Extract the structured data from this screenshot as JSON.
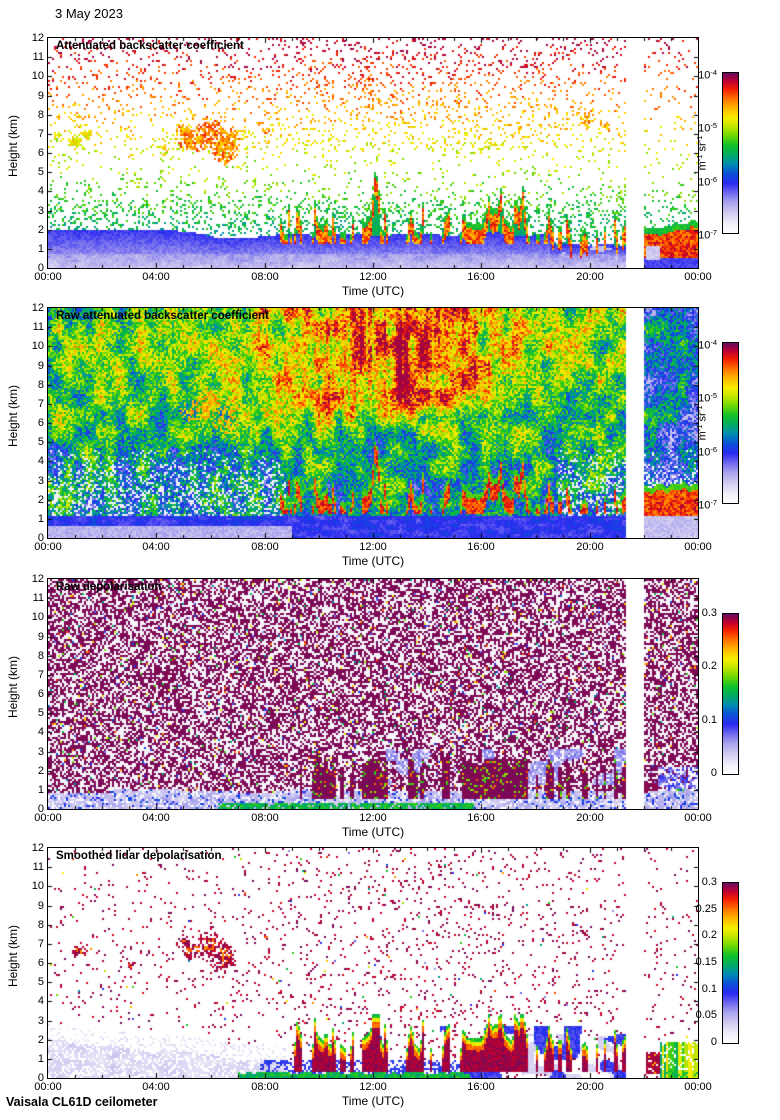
{
  "figure": {
    "date": "3 May 2023",
    "footer": "Vaisala CL61D ceilometer",
    "xlabel": "Time (UTC)",
    "ylabel": "Height (km)",
    "x_ticks": [
      "00:00",
      "04:00",
      "08:00",
      "12:00",
      "16:00",
      "20:00",
      "00:00"
    ],
    "y_ticks": [
      "0",
      "1",
      "2",
      "3",
      "4",
      "5",
      "6",
      "7",
      "8",
      "9",
      "10",
      "11",
      "12"
    ],
    "x_range_hours": [
      0,
      24
    ],
    "y_range_km": [
      0,
      12
    ],
    "data_gap_utc": [
      "21:20",
      "22:00"
    ]
  },
  "render": {
    "plume_seed": 777,
    "cols": 325,
    "rows": 115,
    "cell": 2
  },
  "colormap": [
    [
      0.0,
      "#ffffff"
    ],
    [
      0.06,
      "#efedf8"
    ],
    [
      0.12,
      "#d3cdf1"
    ],
    [
      0.19,
      "#a9a4ec"
    ],
    [
      0.25,
      "#6f68ef"
    ],
    [
      0.31,
      "#2a2af0"
    ],
    [
      0.37,
      "#0b50d8"
    ],
    [
      0.43,
      "#008cb4"
    ],
    [
      0.49,
      "#00ab62"
    ],
    [
      0.55,
      "#14c328"
    ],
    [
      0.61,
      "#71d900"
    ],
    [
      0.67,
      "#c8e700"
    ],
    [
      0.72,
      "#f7ef00"
    ],
    [
      0.78,
      "#ffb900"
    ],
    [
      0.84,
      "#ff7200"
    ],
    [
      0.9,
      "#f32000"
    ],
    [
      0.95,
      "#c00030"
    ],
    [
      1.0,
      "#6d0b5f"
    ]
  ],
  "chart_data": [
    {
      "type": "heatmap",
      "title": "Attenuated backscatter coefficient",
      "summary": "Sparse speckle over white; blue aerosol boundary layer 0-2 km all day; orange cloud patches 6-7.5 km ~05:00-07:00; convective plumes with red cores 1.5-4 km from ~08:40-21:20; data gap 21:20-22:00; red layer 1-2.5 km after 22:00.",
      "colorbar": {
        "scale": "log",
        "min_exp": -7,
        "max_exp": -4,
        "unit_parts": [
          "m",
          "-1",
          " sr",
          "-1"
        ],
        "ticks": [
          {
            "parts": [
              "10",
              "-4"
            ],
            "frac": 1
          },
          {
            "parts": [
              "10",
              "-5"
            ],
            "frac": 0.6667
          },
          {
            "parts": [
              "10",
              "-6"
            ],
            "frac": 0.3333
          },
          {
            "parts": [
              "10",
              "-7"
            ],
            "frac": 0
          }
        ]
      },
      "features": {
        "kind": "backscatter_sparse",
        "seed": 11,
        "gap_hours": [
          21.33,
          22.0
        ],
        "boundary_layer_top_km": 1.95,
        "plume_hours": [
          8.6,
          21.33
        ],
        "plume_top_km": [
          1.2,
          4.0
        ],
        "cloud_blobs": [
          [
            5.35,
            6.6,
            0.55,
            0.6,
            0.8
          ],
          [
            5.0,
            7.1,
            0.3,
            0.45,
            0.77
          ],
          [
            5.95,
            7.0,
            0.5,
            0.9,
            0.82
          ],
          [
            6.55,
            6.35,
            0.55,
            1.0,
            0.8
          ],
          [
            6.9,
            6.9,
            0.25,
            0.5,
            0.78
          ],
          [
            1.0,
            6.6,
            0.3,
            0.35,
            0.7
          ],
          [
            1.45,
            6.95,
            0.22,
            0.3,
            0.68
          ],
          [
            0.35,
            6.9,
            0.2,
            0.3,
            0.66
          ],
          [
            4.3,
            6.1,
            0.22,
            0.3,
            0.7
          ],
          [
            3.1,
            5.85,
            0.12,
            0.2,
            0.72
          ],
          [
            8.05,
            7.2,
            0.13,
            0.28,
            0.78
          ],
          [
            12.3,
            8.6,
            0.1,
            0.16,
            0.72
          ],
          [
            19.85,
            7.75,
            0.2,
            0.3,
            0.78
          ],
          [
            20.65,
            7.3,
            0.13,
            0.22,
            0.76
          ]
        ],
        "post_gap_layer_km": [
          0.8,
          2.2
        ]
      }
    },
    {
      "type": "heatmap",
      "title": "Raw attenuated backscatter coefficient",
      "summary": "Dense rainbow noise everywhere; blue near surface, green mid-levels, orange/red 6-12 km between ~08:00-18:00 with vertical striping; same plume red cores 2-3 km after 09:00; data gap 21:20-22:00.",
      "colorbar": {
        "scale": "log",
        "min_exp": -7,
        "max_exp": -4,
        "unit_parts": [
          "m",
          "-1",
          " sr",
          "-1"
        ],
        "ticks": [
          {
            "parts": [
              "10",
              "-4"
            ],
            "frac": 1
          },
          {
            "parts": [
              "10",
              "-5"
            ],
            "frac": 0.6667
          },
          {
            "parts": [
              "10",
              "-6"
            ],
            "frac": 0.3333
          },
          {
            "parts": [
              "10",
              "-7"
            ],
            "frac": 0
          }
        ]
      },
      "features": {
        "kind": "backscatter_dense",
        "seed": 22,
        "gap_hours": [
          21.33,
          22.0
        ],
        "plume_hours": [
          8.6,
          21.33
        ],
        "warm_center": {
          "t": 12.8,
          "h_min": 5
        },
        "cloud_blobs": [
          [
            5.35,
            6.6,
            0.5,
            0.55,
            0.78
          ],
          [
            5.95,
            7.0,
            0.45,
            0.85,
            0.8
          ],
          [
            6.55,
            6.35,
            0.5,
            0.95,
            0.78
          ],
          [
            3.2,
            5.9,
            0.15,
            0.2,
            0.62
          ]
        ]
      }
    },
    {
      "type": "heatmap",
      "title": "Raw depolarisation",
      "summary": "Dense purple speckle (~0.3) on pale background over full height; pale blue layer below ~0.8 km; green strip at surface ~06:30-15:30; solid purple plumes 0.8-2.5 km from ~09:30-21:20; data gap 21:20-22:00; purple blob then green/blue near surface after 22:00.",
      "colorbar": {
        "scale": "linear",
        "min": 0,
        "max": 0.3,
        "unit_parts": null,
        "ticks": [
          {
            "parts": [
              "0.3"
            ],
            "frac": 1
          },
          {
            "parts": [
              "0.2"
            ],
            "frac": 0.6667
          },
          {
            "parts": [
              "0.1"
            ],
            "frac": 0.3333
          },
          {
            "parts": [
              "0"
            ],
            "frac": 0
          }
        ]
      },
      "features": {
        "kind": "depol_raw",
        "seed": 33,
        "gap_hours": [
          21.33,
          22.0
        ],
        "purple_density": 0.52,
        "bottom_layer_km": 0.8,
        "green_strip_hours": [
          6.3,
          15.7
        ],
        "plume_hours": [
          9.3,
          21.33
        ]
      }
    },
    {
      "type": "heatmap",
      "title": "Smoothed lidar depolarisation",
      "summary": "White background with sparse purple speckle; purple/red cloud patches 6-7.5 km ~04:30-07:20; pale lavender layer 0-1.5 km before 08:00; green surface strip 07:00-15:30; purple plume cores with red/yellow/green fringes 0.5-3 km from 09:00-21:20; data gap 21:20-22:00; purple blob and green fringes after 22:00.",
      "colorbar": {
        "scale": "linear",
        "min": 0,
        "max": 0.3,
        "unit_parts": null,
        "ticks": [
          {
            "parts": [
              "0.3"
            ],
            "frac": 1
          },
          {
            "parts": [
              "0.25"
            ],
            "frac": 0.8333
          },
          {
            "parts": [
              "0.2"
            ],
            "frac": 0.6667
          },
          {
            "parts": [
              "0.15"
            ],
            "frac": 0.5
          },
          {
            "parts": [
              "0.1"
            ],
            "frac": 0.3333
          },
          {
            "parts": [
              "0.05"
            ],
            "frac": 0.1667
          },
          {
            "parts": [
              "0"
            ],
            "frac": 0
          }
        ]
      },
      "features": {
        "kind": "depol_smooth",
        "seed": 44,
        "gap_hours": [
          21.33,
          22.0
        ],
        "plume_hours": [
          9.0,
          21.33
        ],
        "green_strip_hours": [
          7.0,
          15.6
        ],
        "lavender_layer_hours": [
          0,
          8.8
        ],
        "cloud_blobs": [
          [
            5.35,
            6.7,
            0.5,
            0.55
          ],
          [
            5.0,
            7.15,
            0.28,
            0.4
          ],
          [
            5.95,
            7.0,
            0.45,
            0.8
          ],
          [
            6.5,
            6.3,
            0.5,
            0.9
          ],
          [
            1.15,
            6.6,
            0.3,
            0.3
          ],
          [
            3.05,
            5.85,
            0.15,
            0.2
          ],
          [
            8.05,
            7.3,
            0.12,
            0.2
          ],
          [
            19.8,
            7.6,
            0.15,
            0.25
          ],
          [
            12.3,
            9.0,
            0.08,
            0.12
          ]
        ]
      }
    }
  ]
}
